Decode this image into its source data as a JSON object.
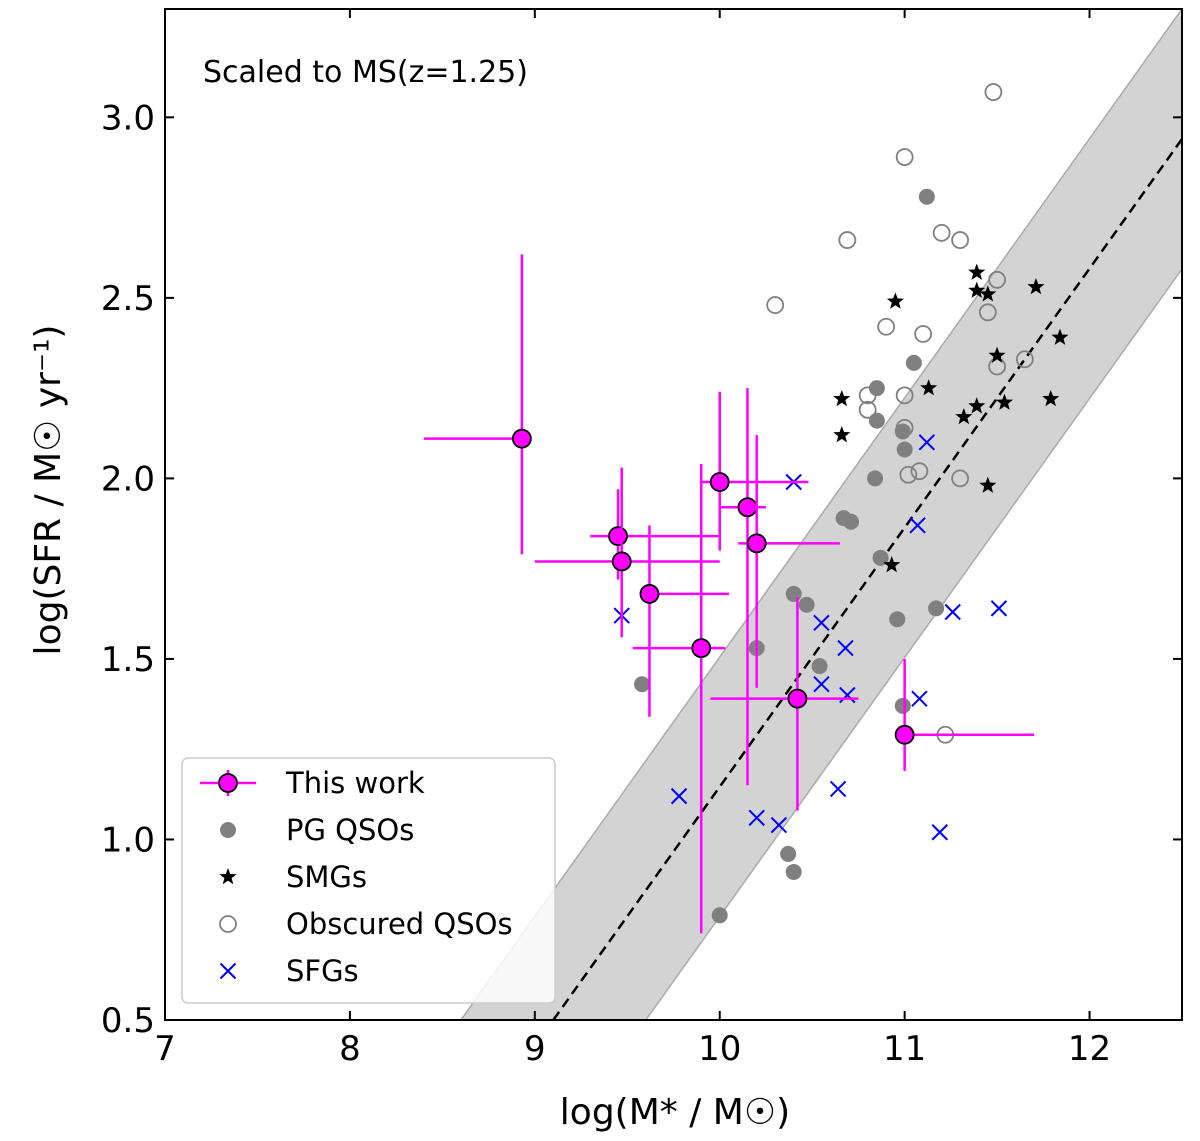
{
  "chart_data": {
    "type": "scatter",
    "title": "",
    "annotation": "Scaled to MS(z=1.25)",
    "xlabel": "log(M* / M☉)",
    "ylabel": "log(SFR / M☉ yr⁻¹)",
    "xlim": [
      7,
      12.5
    ],
    "ylim": [
      0.5,
      3.3
    ],
    "xticks": [
      7,
      8,
      9,
      10,
      11,
      12
    ],
    "yticks": [
      0.5,
      1.0,
      1.5,
      2.0,
      2.5,
      3.0
    ],
    "xtick_labels": [
      "7",
      "8",
      "9",
      "10",
      "11",
      "12"
    ],
    "ytick_labels": [
      "0.5",
      "1.0",
      "1.5",
      "2.0",
      "2.5",
      "3.0"
    ],
    "legend_position": "lower-left",
    "main_sequence": {
      "line": [
        [
          9.1,
          0.5
        ],
        [
          12.5,
          2.94
        ]
      ],
      "band_lower": [
        [
          9.6,
          0.5
        ],
        [
          12.5,
          2.58
        ]
      ],
      "band_upper": [
        [
          8.6,
          0.5
        ],
        [
          12.5,
          3.3
        ]
      ],
      "band_color": "#d3d3d3",
      "line_color": "#000000"
    },
    "series": [
      {
        "name": "This work",
        "marker": "filled-circle-errorbar",
        "color": "#ff00ff",
        "edge_color": "#000000",
        "points": [
          {
            "x": 8.93,
            "y": 2.11,
            "xerr": [
              0.53,
              0.0
            ],
            "yerr": [
              0.32,
              0.51
            ]
          },
          {
            "x": 9.45,
            "y": 1.84,
            "xerr": [
              0.15,
              0.55
            ],
            "yerr": [
              0.12,
              0.13
            ]
          },
          {
            "x": 9.47,
            "y": 1.77,
            "xerr": [
              0.47,
              0.53
            ],
            "yerr": [
              0.21,
              0.26
            ]
          },
          {
            "x": 9.62,
            "y": 1.68,
            "xerr": [
              0.0,
              0.43
            ],
            "yerr": [
              0.34,
              0.19
            ]
          },
          {
            "x": 9.9,
            "y": 1.53,
            "xerr": [
              0.37,
              0.13
            ],
            "yerr": [
              0.79,
              0.51
            ]
          },
          {
            "x": 10.0,
            "y": 1.99,
            "xerr": [
              0.1,
              0.48
            ],
            "yerr": [
              0.19,
              0.25
            ]
          },
          {
            "x": 10.15,
            "y": 1.92,
            "xerr": [
              0.15,
              0.1
            ],
            "yerr": [
              0.77,
              0.33
            ]
          },
          {
            "x": 10.2,
            "y": 1.82,
            "xerr": [
              0.1,
              0.45
            ],
            "yerr": [
              0.4,
              0.3
            ]
          },
          {
            "x": 10.42,
            "y": 1.39,
            "xerr": [
              0.47,
              0.33
            ],
            "yerr": [
              0.31,
              0.28
            ]
          },
          {
            "x": 11.0,
            "y": 1.29,
            "xerr": [
              0.0,
              0.7
            ],
            "yerr": [
              0.1,
              0.21
            ]
          }
        ]
      },
      {
        "name": "PG QSOs",
        "marker": "filled-circle",
        "color": "#808080",
        "points": [
          [
            11.12,
            2.78
          ],
          [
            11.05,
            2.32
          ],
          [
            10.85,
            2.25
          ],
          [
            10.85,
            2.16
          ],
          [
            10.99,
            2.13
          ],
          [
            11.0,
            2.08
          ],
          [
            10.84,
            2.0
          ],
          [
            10.67,
            1.89
          ],
          [
            10.71,
            1.88
          ],
          [
            10.87,
            1.78
          ],
          [
            10.4,
            1.68
          ],
          [
            10.47,
            1.65
          ],
          [
            10.96,
            1.61
          ],
          [
            11.17,
            1.64
          ],
          [
            10.2,
            1.53
          ],
          [
            10.54,
            1.48
          ],
          [
            9.58,
            1.43
          ],
          [
            10.99,
            1.37
          ],
          [
            10.37,
            0.96
          ],
          [
            10.4,
            0.91
          ],
          [
            10.0,
            0.79
          ]
        ]
      },
      {
        "name": "SMGs",
        "marker": "star",
        "color": "#000000",
        "points": [
          [
            11.39,
            2.57
          ],
          [
            11.39,
            2.52
          ],
          [
            11.45,
            2.51
          ],
          [
            10.95,
            2.49
          ],
          [
            11.71,
            2.53
          ],
          [
            11.84,
            2.39
          ],
          [
            11.5,
            2.34
          ],
          [
            10.66,
            2.22
          ],
          [
            11.13,
            2.25
          ],
          [
            11.39,
            2.2
          ],
          [
            11.54,
            2.21
          ],
          [
            11.79,
            2.22
          ],
          [
            11.32,
            2.17
          ],
          [
            10.66,
            2.12
          ],
          [
            11.45,
            1.98
          ],
          [
            10.93,
            1.76
          ]
        ]
      },
      {
        "name": "Obscured QSOs",
        "marker": "open-circle",
        "color": "#808080",
        "points": [
          [
            11.48,
            3.07
          ],
          [
            11.0,
            2.89
          ],
          [
            10.69,
            2.66
          ],
          [
            11.2,
            2.68
          ],
          [
            11.3,
            2.66
          ],
          [
            10.3,
            2.48
          ],
          [
            11.5,
            2.55
          ],
          [
            11.45,
            2.46
          ],
          [
            10.9,
            2.42
          ],
          [
            11.1,
            2.4
          ],
          [
            11.5,
            2.31
          ],
          [
            11.65,
            2.33
          ],
          [
            10.8,
            2.23
          ],
          [
            11.0,
            2.23
          ],
          [
            10.8,
            2.19
          ],
          [
            11.0,
            2.14
          ],
          [
            11.02,
            2.01
          ],
          [
            11.08,
            2.02
          ],
          [
            11.3,
            2.0
          ],
          [
            11.22,
            1.29
          ]
        ]
      },
      {
        "name": "SFGs",
        "marker": "x",
        "color": "#0000ff",
        "points": [
          [
            10.4,
            1.99
          ],
          [
            11.12,
            2.1
          ],
          [
            11.07,
            1.87
          ],
          [
            9.47,
            1.62
          ],
          [
            10.55,
            1.6
          ],
          [
            11.26,
            1.63
          ],
          [
            11.51,
            1.64
          ],
          [
            10.68,
            1.53
          ],
          [
            10.55,
            1.43
          ],
          [
            10.69,
            1.4
          ],
          [
            11.08,
            1.39
          ],
          [
            9.78,
            1.12
          ],
          [
            10.2,
            1.06
          ],
          [
            10.32,
            1.04
          ],
          [
            10.64,
            1.14
          ],
          [
            11.19,
            1.02
          ]
        ]
      }
    ],
    "legend": [
      {
        "label": "This work",
        "marker": "filled-circle-errorbar"
      },
      {
        "label": "PG QSOs",
        "marker": "filled-circle"
      },
      {
        "label": "SMGs",
        "marker": "star"
      },
      {
        "label": "Obscured QSOs",
        "marker": "open-circle"
      },
      {
        "label": "SFGs",
        "marker": "x"
      }
    ]
  }
}
